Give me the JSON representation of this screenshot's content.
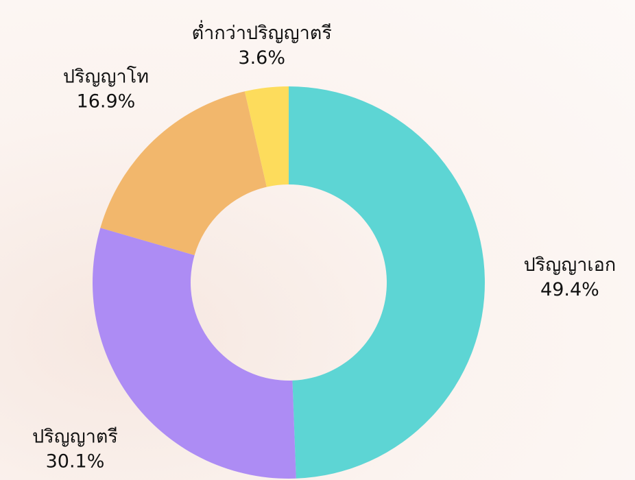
{
  "chart_data": {
    "type": "donut",
    "categories": [
      "ปริญญาเอก",
      "ปริญญาตรี",
      "ปริญญาโท",
      "ต่ำกว่าปริญญาตรี"
    ],
    "values": [
      49.4,
      30.1,
      16.9,
      3.6
    ],
    "value_labels": [
      "49.4%",
      "30.1%",
      "16.9%",
      "3.6%"
    ],
    "colors": [
      "#5dd5d4",
      "#ad8cf4",
      "#f2b76c",
      "#fddc5c"
    ]
  }
}
